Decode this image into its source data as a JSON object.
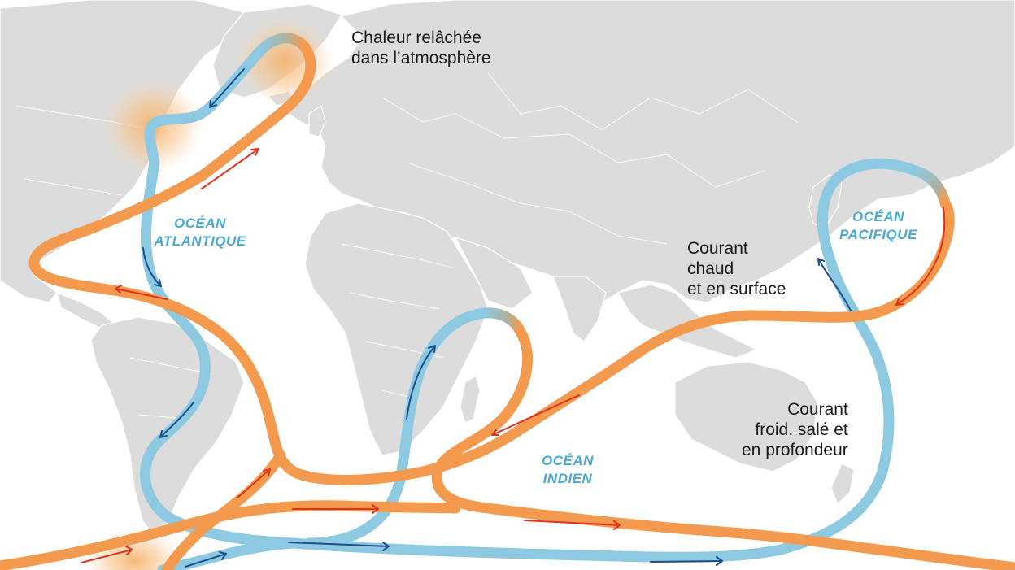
{
  "labels": {
    "heat_release": "Chaleur relâchée\ndans l’atmosphère",
    "warm_current": "Courant\nchaud\net en surface",
    "cold_current": "Courant\nfroid, salé et\nen profondeur"
  },
  "oceans": {
    "atlantic": "OCÉAN\nATLANTIQUE",
    "pacific": "OCÉAN\nPACIFIQUE",
    "indian": "OCÉAN\nINDIEN"
  },
  "colors": {
    "warm_current": "#f39a4e",
    "cold_current": "#8ec9e2",
    "warm_arrow": "#e0321c",
    "cold_arrow": "#1b4e8c",
    "ocean_label": "#4aa8d4",
    "land": "#dcdcdc",
    "heat_glow": "#f6b46e"
  }
}
